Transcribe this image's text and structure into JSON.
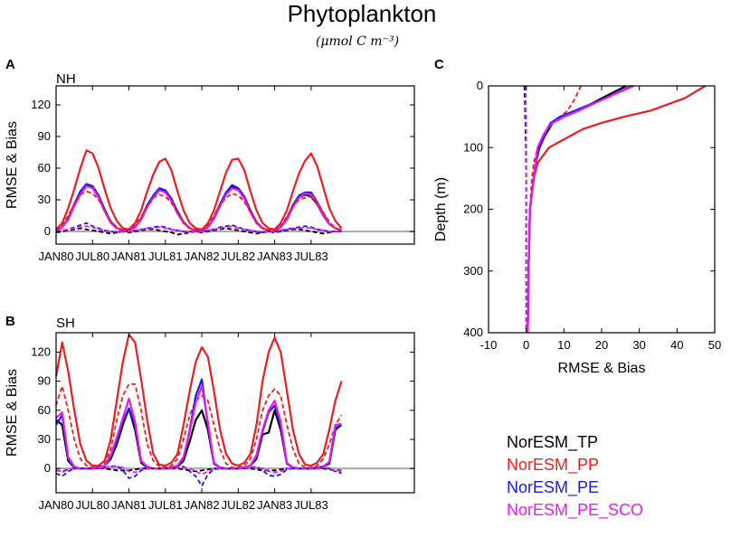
{
  "title": "Phytoplankton",
  "units": "(μmol C m⁻³)",
  "colors": {
    "TP": "#000000",
    "PP": "#ee1c1c",
    "PE": "#1a1ae6",
    "PE_SCO": "#e81ce8",
    "zero": "#aaaaaa"
  },
  "legend": [
    "NorESM_TP",
    "NorESM_PP",
    "NorESM_PE",
    "NorESM_PE_SCO"
  ],
  "chart_data": [
    {
      "id": "A",
      "type": "line",
      "panel_letter": "A",
      "panel_label": "NH",
      "ylabel": "RMSE & Bias",
      "xlabel": "",
      "ylim": [
        -12,
        138
      ],
      "yticks": [
        0,
        30,
        60,
        90,
        120
      ],
      "xlim": [
        0,
        59
      ],
      "xtick_positions": [
        0,
        6,
        12,
        18,
        24,
        30,
        36,
        42
      ],
      "xtick_labels": [
        "JAN80",
        "JUL80",
        "JAN81",
        "JUL81",
        "JAN82",
        "JUL82",
        "JAN83",
        "JUL83"
      ],
      "series": [
        {
          "name": "NorESM_TP RMSE",
          "key": "TP",
          "dash": false,
          "values": [
            1,
            4,
            12,
            25,
            36,
            44,
            42,
            33,
            20,
            9,
            3,
            1,
            1,
            4,
            12,
            24,
            33,
            40,
            38,
            30,
            18,
            8,
            3,
            1,
            1,
            4,
            12,
            25,
            35,
            42,
            40,
            32,
            19,
            8,
            3,
            1,
            1,
            4,
            12,
            24,
            32,
            35,
            33,
            26,
            15,
            7,
            3,
            1
          ]
        },
        {
          "name": "NorESM_PP RMSE",
          "key": "PP",
          "dash": false,
          "values": [
            2,
            8,
            22,
            40,
            60,
            77,
            74,
            60,
            40,
            22,
            10,
            3,
            2,
            8,
            20,
            38,
            54,
            66,
            69,
            58,
            38,
            20,
            8,
            3,
            2,
            8,
            20,
            38,
            56,
            68,
            69,
            58,
            38,
            20,
            8,
            3,
            2,
            8,
            20,
            38,
            55,
            67,
            74,
            62,
            42,
            22,
            10,
            3
          ]
        },
        {
          "name": "NorESM_PE RMSE",
          "key": "PE",
          "dash": false,
          "values": [
            1,
            4,
            12,
            26,
            38,
            45,
            43,
            34,
            21,
            9,
            3,
            1,
            1,
            4,
            12,
            25,
            34,
            41,
            39,
            31,
            19,
            9,
            3,
            1,
            1,
            4,
            13,
            26,
            37,
            44,
            41,
            33,
            20,
            9,
            3,
            1,
            1,
            4,
            12,
            25,
            34,
            37,
            37,
            28,
            17,
            7,
            3,
            1
          ]
        },
        {
          "name": "NorESM_PE_SCO RMSE",
          "key": "PE_SCO",
          "dash": false,
          "values": [
            1,
            4,
            11,
            24,
            35,
            43,
            41,
            32,
            19,
            8,
            3,
            1,
            1,
            4,
            11,
            23,
            32,
            39,
            37,
            29,
            17,
            8,
            3,
            1,
            1,
            4,
            12,
            24,
            35,
            41,
            39,
            31,
            18,
            8,
            3,
            1,
            1,
            4,
            11,
            23,
            32,
            36,
            35,
            27,
            15,
            7,
            3,
            1
          ]
        },
        {
          "name": "NorESM_PP Bias",
          "key": "PP",
          "dash": true,
          "values": [
            1,
            6,
            15,
            26,
            35,
            38,
            36,
            30,
            20,
            10,
            4,
            1,
            1,
            6,
            14,
            24,
            32,
            35,
            33,
            27,
            18,
            9,
            3,
            1,
            1,
            6,
            15,
            25,
            32,
            36,
            34,
            28,
            19,
            9,
            3,
            1,
            1,
            6,
            14,
            24,
            30,
            32,
            33,
            28,
            18,
            9,
            3,
            1
          ]
        },
        {
          "name": "NorESM_TP Bias",
          "key": "TP",
          "dash": true,
          "values": [
            -1,
            0,
            1,
            2,
            3,
            2,
            1,
            0,
            -1,
            -2,
            -1,
            0,
            -1,
            0,
            1,
            2,
            2,
            1,
            0,
            -1,
            -3,
            -2,
            -1,
            0,
            -1,
            0,
            1,
            2,
            3,
            2,
            1,
            0,
            -1,
            -2,
            -1,
            0,
            -1,
            0,
            1,
            2,
            2,
            1,
            0,
            -1,
            -2,
            -1,
            0,
            0
          ]
        },
        {
          "name": "NorESM_PE Bias",
          "key": "PE",
          "dash": true,
          "values": [
            0,
            1,
            2,
            4,
            6,
            8,
            5,
            3,
            1,
            0,
            -1,
            0,
            0,
            1,
            2,
            3,
            4,
            5,
            4,
            2,
            1,
            0,
            0,
            0,
            0,
            1,
            2,
            4,
            5,
            6,
            4,
            2,
            1,
            0,
            -1,
            0,
            0,
            1,
            2,
            3,
            4,
            5,
            4,
            2,
            1,
            0,
            0,
            0
          ]
        },
        {
          "name": "NorESM_PE_SCO Bias",
          "key": "PE_SCO",
          "dash": true,
          "values": [
            0,
            1,
            2,
            3,
            4,
            5,
            4,
            2,
            1,
            0,
            0,
            0,
            0,
            1,
            2,
            3,
            3,
            4,
            3,
            2,
            1,
            0,
            0,
            0,
            0,
            1,
            2,
            3,
            4,
            5,
            3,
            2,
            1,
            0,
            0,
            0,
            0,
            1,
            2,
            3,
            3,
            4,
            3,
            2,
            1,
            0,
            0,
            0
          ]
        }
      ]
    },
    {
      "id": "B",
      "type": "line",
      "panel_letter": "B",
      "panel_label": "SH",
      "ylabel": "RMSE & Bias",
      "xlabel": "",
      "ylim": [
        -25,
        140
      ],
      "yticks": [
        0,
        30,
        60,
        90,
        120
      ],
      "xlim": [
        0,
        59
      ],
      "xtick_positions": [
        0,
        6,
        12,
        18,
        24,
        30,
        36,
        42
      ],
      "xtick_labels": [
        "JAN80",
        "JUL80",
        "JAN81",
        "JUL81",
        "JAN82",
        "JUL82",
        "JAN83",
        "JUL83"
      ],
      "series": [
        {
          "name": "NorESM_TP RMSE",
          "key": "TP",
          "dash": false,
          "values": [
            50,
            45,
            8,
            1,
            0,
            0,
            0,
            1,
            3,
            10,
            25,
            45,
            62,
            40,
            6,
            1,
            0,
            0,
            0,
            1,
            2,
            8,
            28,
            50,
            60,
            40,
            5,
            1,
            0,
            0,
            0,
            1,
            3,
            10,
            35,
            37,
            60,
            40,
            5,
            1,
            0,
            0,
            0,
            1,
            2,
            5,
            40,
            45
          ]
        },
        {
          "name": "NorESM_PP RMSE",
          "key": "PP",
          "dash": false,
          "values": [
            95,
            130,
            100,
            60,
            25,
            8,
            3,
            3,
            8,
            30,
            70,
            110,
            138,
            130,
            92,
            50,
            15,
            4,
            3,
            6,
            15,
            45,
            80,
            110,
            125,
            115,
            80,
            40,
            15,
            5,
            3,
            6,
            15,
            45,
            90,
            120,
            135,
            120,
            80,
            40,
            15,
            4,
            3,
            6,
            15,
            40,
            70,
            90
          ]
        },
        {
          "name": "NorESM_PP Bias",
          "key": "PP",
          "dash": true,
          "values": [
            65,
            85,
            60,
            30,
            10,
            3,
            1,
            2,
            5,
            20,
            50,
            75,
            87,
            87,
            60,
            25,
            8,
            2,
            1,
            3,
            10,
            30,
            55,
            70,
            75,
            70,
            45,
            20,
            5,
            1,
            1,
            3,
            10,
            30,
            60,
            75,
            82,
            75,
            45,
            20,
            5,
            1,
            1,
            3,
            10,
            25,
            45,
            55
          ]
        },
        {
          "name": "NorESM_PE RMSE",
          "key": "PE",
          "dash": false,
          "values": [
            45,
            55,
            10,
            1,
            0,
            0,
            0,
            1,
            3,
            12,
            28,
            48,
            62,
            45,
            8,
            1,
            0,
            0,
            0,
            1,
            3,
            10,
            40,
            75,
            92,
            45,
            5,
            1,
            0,
            0,
            0,
            1,
            3,
            12,
            38,
            58,
            65,
            45,
            5,
            1,
            0,
            0,
            0,
            1,
            2,
            6,
            42,
            45
          ]
        },
        {
          "name": "NorESM_PE_SCO RMSE",
          "key": "PE_SCO",
          "dash": false,
          "values": [
            52,
            58,
            12,
            2,
            0,
            0,
            0,
            1,
            3,
            14,
            32,
            52,
            72,
            48,
            8,
            2,
            0,
            0,
            0,
            1,
            3,
            12,
            38,
            68,
            85,
            48,
            6,
            1,
            0,
            0,
            0,
            1,
            3,
            14,
            40,
            60,
            70,
            48,
            6,
            1,
            0,
            0,
            0,
            1,
            2,
            7,
            45,
            46
          ]
        },
        {
          "name": "NorESM_TP Bias",
          "key": "TP",
          "dash": true,
          "values": [
            -2,
            -3,
            -1,
            0,
            0,
            0,
            0,
            0,
            0,
            -1,
            -2,
            -2,
            -2,
            -1,
            0,
            0,
            0,
            0,
            0,
            0,
            0,
            -1,
            -2,
            -3,
            -2,
            -1,
            0,
            0,
            0,
            0,
            0,
            0,
            0,
            -1,
            -2,
            -2,
            -2,
            -1,
            0,
            0,
            0,
            0,
            0,
            0,
            0,
            -1,
            -2,
            -2
          ]
        },
        {
          "name": "NorESM_PE Bias",
          "key": "PE",
          "dash": true,
          "values": [
            -5,
            -8,
            -3,
            0,
            0,
            0,
            0,
            0,
            1,
            2,
            3,
            -2,
            -10,
            -8,
            -2,
            0,
            0,
            0,
            0,
            0,
            1,
            2,
            -3,
            -8,
            -18,
            -6,
            -1,
            0,
            0,
            0,
            0,
            0,
            1,
            2,
            -2,
            -7,
            -8,
            -6,
            -1,
            0,
            0,
            0,
            0,
            0,
            1,
            0,
            -3,
            -5
          ]
        },
        {
          "name": "NorESM_PE_SCO Bias",
          "key": "PE_SCO",
          "dash": true,
          "values": [
            -1,
            -4,
            -1,
            0,
            0,
            0,
            0,
            0,
            1,
            2,
            2,
            1,
            -3,
            -4,
            -1,
            0,
            0,
            0,
            0,
            0,
            1,
            1,
            0,
            -3,
            -6,
            -3,
            0,
            0,
            0,
            0,
            0,
            0,
            1,
            1,
            0,
            -3,
            -4,
            -3,
            0,
            0,
            0,
            0,
            0,
            0,
            1,
            0,
            -2,
            -3
          ]
        }
      ]
    },
    {
      "id": "C",
      "type": "line",
      "panel_letter": "C",
      "xlabel": "RMSE & Bias",
      "ylabel": "Depth (m)",
      "xlim": [
        -10,
        50
      ],
      "ylim": [
        400,
        0
      ],
      "xticks": [
        -10,
        0,
        10,
        20,
        30,
        40,
        50
      ],
      "yticks": [
        0,
        100,
        200,
        300,
        400
      ],
      "depths": [
        0,
        20,
        40,
        50,
        60,
        70,
        80,
        100,
        125,
        150,
        200,
        250,
        300,
        350,
        400
      ],
      "series": [
        {
          "name": "NorESM_PP RMSE",
          "key": "PP",
          "dash": false,
          "values": [
            47.5,
            42,
            33,
            26,
            20,
            15,
            12,
            6,
            3,
            2,
            1,
            0.8,
            0.6,
            0.5,
            0.4
          ]
        },
        {
          "name": "NorESM_PP Bias",
          "key": "PP",
          "dash": true,
          "values": [
            14.5,
            13,
            11,
            9,
            7,
            6,
            5,
            3,
            2,
            1.5,
            1,
            0.8,
            0.6,
            0.5,
            0.4
          ]
        },
        {
          "name": "NorESM_TP RMSE",
          "key": "TP",
          "dash": false,
          "values": [
            26.5,
            20,
            14,
            10,
            7,
            6,
            5,
            3.5,
            2.5,
            2,
            1,
            0.8,
            0.6,
            0.5,
            0.4
          ]
        },
        {
          "name": "NorESM_PE RMSE",
          "key": "PE",
          "dash": false,
          "values": [
            28,
            21,
            13,
            9,
            6.5,
            5.5,
            5,
            3.5,
            2.5,
            2,
            1,
            0.8,
            0.6,
            0.5,
            0.4
          ]
        },
        {
          "name": "NorESM_PE_SCO RMSE",
          "key": "PE_SCO",
          "dash": false,
          "values": [
            28.5,
            21,
            14,
            10,
            7,
            5.5,
            4.5,
            3,
            2.5,
            2,
            1,
            0.8,
            0.6,
            0.5,
            0.4
          ]
        },
        {
          "name": "NorESM_TP Bias",
          "key": "TP",
          "dash": true,
          "values": [
            -0.5,
            -0.4,
            -0.3,
            -0.3,
            -0.2,
            -0.2,
            -0.2,
            -0.1,
            -0.1,
            0,
            0,
            0,
            0,
            0,
            0
          ]
        },
        {
          "name": "NorESM_PE Bias",
          "key": "PE",
          "dash": true,
          "values": [
            -0.3,
            -0.3,
            -0.2,
            -0.2,
            -0.1,
            -0.1,
            -0.1,
            0,
            0,
            0,
            0,
            0,
            0,
            0,
            0
          ]
        },
        {
          "name": "NorESM_PE_SCO Bias",
          "key": "PE_SCO",
          "dash": true,
          "values": [
            -0.1,
            -0.1,
            -0.1,
            0,
            0,
            0,
            0,
            0,
            0,
            0,
            0,
            0,
            0,
            0,
            0
          ]
        }
      ]
    }
  ]
}
